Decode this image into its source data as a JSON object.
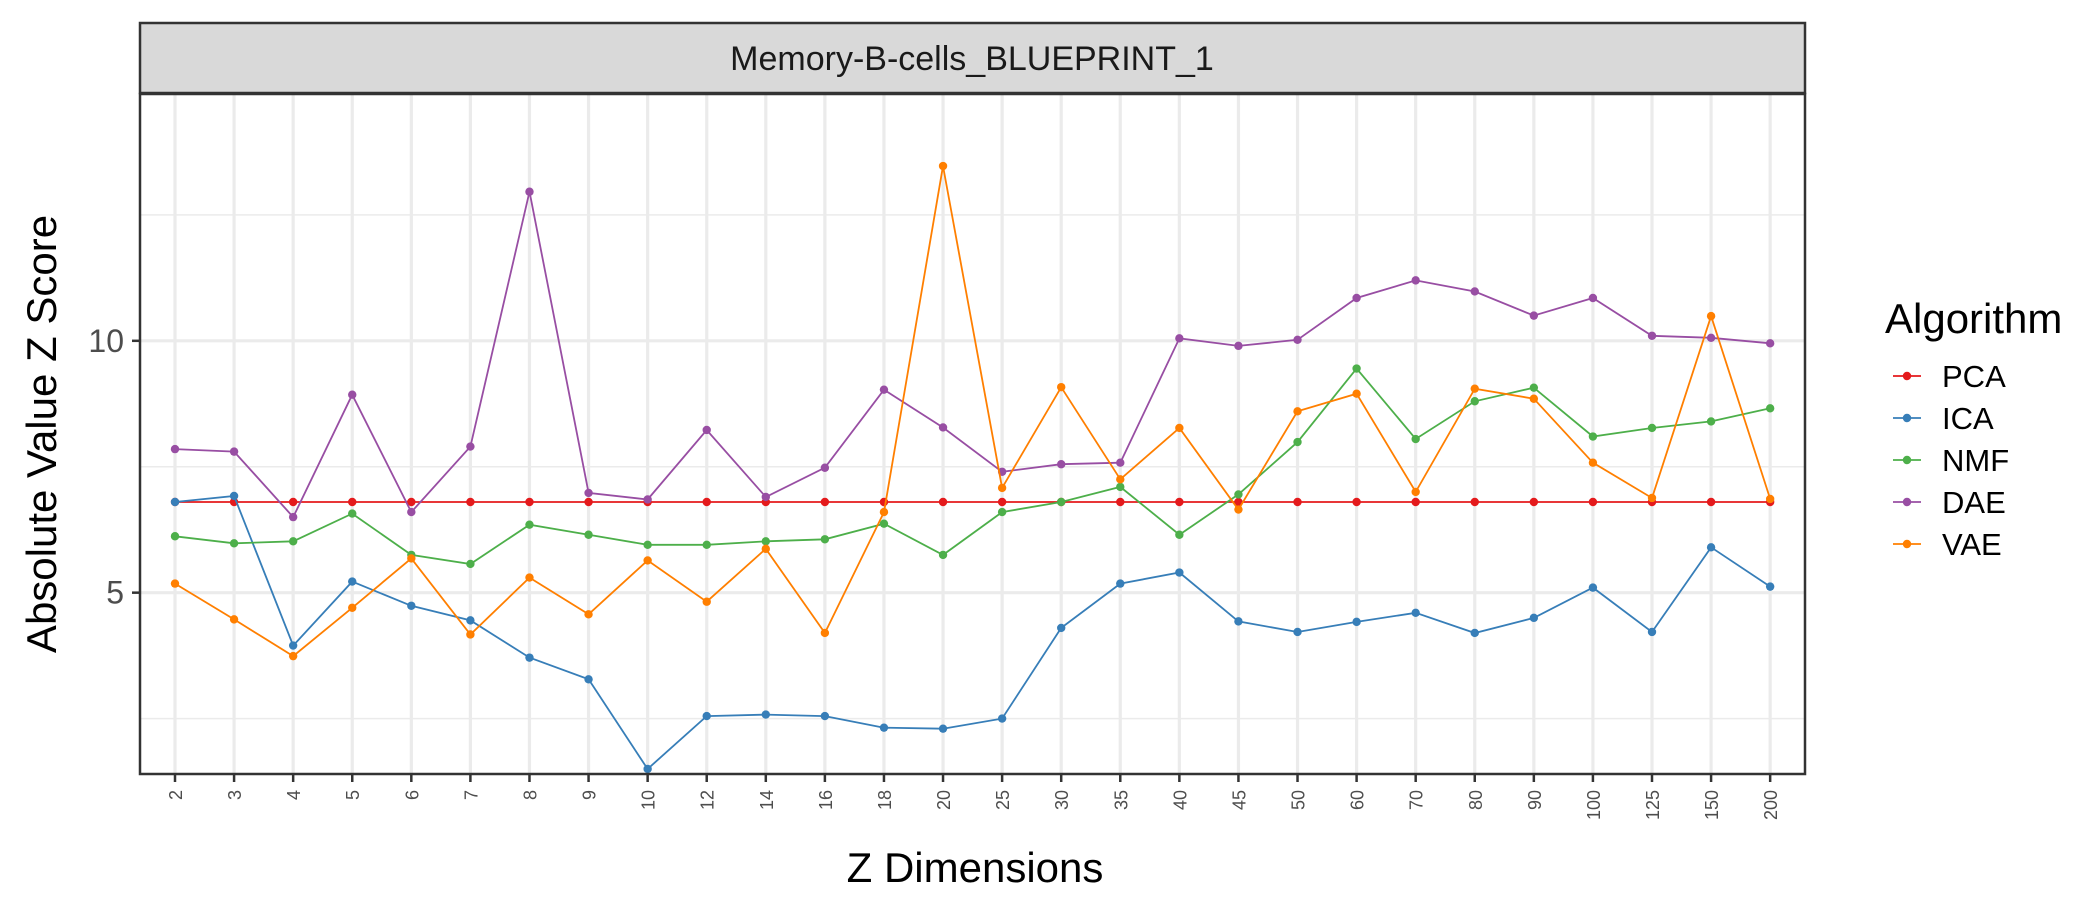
{
  "chart_data": {
    "type": "line",
    "title": "Memory-B-cells_BLUEPRINT_1",
    "xlabel": "Z Dimensions",
    "ylabel": "Absolute Value Z Score",
    "legend_title": "Algorithm",
    "legend_position": "right",
    "grid": true,
    "ylim": [
      1.4,
      14.9
    ],
    "yticks": [
      5,
      10
    ],
    "categories": [
      "2",
      "3",
      "4",
      "5",
      "6",
      "7",
      "8",
      "9",
      "10",
      "12",
      "14",
      "16",
      "18",
      "20",
      "25",
      "30",
      "35",
      "40",
      "45",
      "50",
      "60",
      "70",
      "80",
      "90",
      "100",
      "125",
      "150",
      "200"
    ],
    "series": [
      {
        "name": "PCA",
        "color": "#E41A1C",
        "values": [
          6.8,
          6.8,
          6.8,
          6.8,
          6.8,
          6.8,
          6.8,
          6.8,
          6.8,
          6.8,
          6.8,
          6.8,
          6.8,
          6.8,
          6.8,
          6.8,
          6.8,
          6.8,
          6.8,
          6.8,
          6.8,
          6.8,
          6.8,
          6.8,
          6.8,
          6.8,
          6.8,
          6.8
        ]
      },
      {
        "name": "ICA",
        "color": "#377EB8",
        "values": [
          6.8,
          6.92,
          3.95,
          5.22,
          4.74,
          4.45,
          3.71,
          3.28,
          1.5,
          2.55,
          2.58,
          2.55,
          2.32,
          2.3,
          2.5,
          4.3,
          5.18,
          5.4,
          4.43,
          4.22,
          4.42,
          4.6,
          4.2,
          4.5,
          5.1,
          4.22,
          5.9,
          5.12
        ]
      },
      {
        "name": "NMF",
        "color": "#4DAF4A",
        "values": [
          6.12,
          5.98,
          6.02,
          6.57,
          5.75,
          5.57,
          6.35,
          6.15,
          5.95,
          5.95,
          6.02,
          6.06,
          6.37,
          5.75,
          6.6,
          6.8,
          7.1,
          6.15,
          6.95,
          7.99,
          9.45,
          8.05,
          8.8,
          9.07,
          8.1,
          8.27,
          8.4,
          8.66
        ]
      },
      {
        "name": "DAE",
        "color": "#984EA3",
        "values": [
          7.85,
          7.8,
          6.5,
          8.93,
          6.6,
          7.9,
          12.96,
          6.98,
          6.85,
          8.23,
          6.9,
          7.48,
          9.03,
          8.28,
          7.4,
          7.55,
          7.58,
          10.05,
          9.9,
          10.02,
          10.85,
          11.2,
          10.98,
          10.5,
          10.85,
          10.1,
          10.06,
          9.95
        ]
      },
      {
        "name": "VAE",
        "color": "#FF7F00",
        "values": [
          5.18,
          4.47,
          3.74,
          4.7,
          5.68,
          4.17,
          5.3,
          4.57,
          5.64,
          4.82,
          5.87,
          4.2,
          6.6,
          13.47,
          7.08,
          9.08,
          7.25,
          8.27,
          6.65,
          8.6,
          8.95,
          7.0,
          9.05,
          8.85,
          7.58,
          6.88,
          10.49,
          6.86
        ]
      }
    ]
  }
}
